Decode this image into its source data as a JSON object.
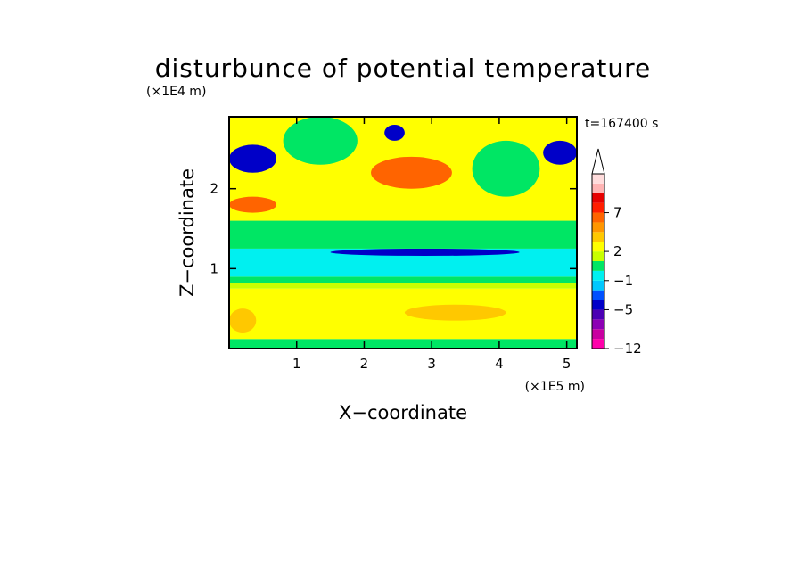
{
  "chart_data": {
    "type": "heatmap",
    "title": "disturbunce of potential temperature",
    "xlabel": "X−coordinate",
    "ylabel": "Z−coordinate",
    "x_unit": "(×1E5 m)",
    "y_unit": "(×1E4 m)",
    "time_label": "t=167400 s",
    "xlim": [
      0,
      5.15
    ],
    "ylim": [
      0,
      2.9
    ],
    "x_ticks": [
      1,
      2,
      3,
      4,
      5
    ],
    "y_ticks": [
      1,
      2
    ],
    "colorbar": {
      "tick_labels": [
        {
          "label": "7",
          "level": 7
        },
        {
          "label": "2",
          "level": 2
        },
        {
          "label": "−1",
          "level": -1
        },
        {
          "label": "−5",
          "level": -5
        },
        {
          "label": "−12",
          "level": -12
        }
      ],
      "bins": [
        {
          "lo": -12,
          "hi": -10,
          "color": "#ff00aa"
        },
        {
          "lo": -10,
          "hi": -8,
          "color": "#c800a0"
        },
        {
          "lo": -8,
          "hi": -6,
          "color": "#8c00b4"
        },
        {
          "lo": -6,
          "hi": -5,
          "color": "#4b00b4"
        },
        {
          "lo": -5,
          "hi": -3,
          "color": "#0000c8"
        },
        {
          "lo": -3,
          "hi": -2,
          "color": "#0050ff"
        },
        {
          "lo": -2,
          "hi": -1,
          "color": "#00c8ff"
        },
        {
          "lo": -1,
          "hi": 0,
          "color": "#00f0f0"
        },
        {
          "lo": 0,
          "hi": 1,
          "color": "#00e664"
        },
        {
          "lo": 1,
          "hi": 2,
          "color": "#c8ff00"
        },
        {
          "lo": 2,
          "hi": 3,
          "color": "#ffff00"
        },
        {
          "lo": 3,
          "hi": 4,
          "color": "#ffc800"
        },
        {
          "lo": 4,
          "hi": 5,
          "color": "#ff9600"
        },
        {
          "lo": 5,
          "hi": 7,
          "color": "#ff6400"
        },
        {
          "lo": 7,
          "hi": 9,
          "color": "#ff1e00"
        },
        {
          "lo": 9,
          "hi": 11,
          "color": "#e60000"
        },
        {
          "lo": 11,
          "hi": 13,
          "color": "#ffb4b4"
        },
        {
          "lo": 13,
          "hi": 15,
          "color": "#ffdcdc"
        }
      ],
      "extend": "max"
    },
    "regions": [
      {
        "value": 0.5,
        "x": [
          0,
          5.15
        ],
        "z": [
          0.0,
          0.12
        ]
      },
      {
        "value": 2.5,
        "x": [
          0,
          5.15
        ],
        "z": [
          0.12,
          0.75
        ]
      },
      {
        "value": 1.5,
        "x": [
          0,
          5.15
        ],
        "z": [
          0.75,
          0.82
        ]
      },
      {
        "value": 0.5,
        "x": [
          0,
          5.15
        ],
        "z": [
          0.82,
          0.9
        ]
      },
      {
        "value": -0.5,
        "x": [
          0,
          5.15
        ],
        "z": [
          0.9,
          1.25
        ]
      },
      {
        "value": -4,
        "x": [
          1.5,
          4.3
        ],
        "z": [
          1.16,
          1.25
        ]
      },
      {
        "value": 0.5,
        "x": [
          0,
          5.15
        ],
        "z": [
          1.25,
          1.6
        ]
      },
      {
        "value": 2.5,
        "x": [
          0,
          5.15
        ],
        "z": [
          1.6,
          2.9
        ]
      },
      {
        "value": 5,
        "x": [
          2.1,
          3.3
        ],
        "z": [
          2.0,
          2.4
        ]
      },
      {
        "value": 5,
        "x": [
          0,
          0.7
        ],
        "z": [
          1.7,
          1.9
        ]
      },
      {
        "value": -4,
        "x": [
          0,
          0.7
        ],
        "z": [
          2.2,
          2.55
        ]
      },
      {
        "value": -4,
        "x": [
          4.65,
          5.15
        ],
        "z": [
          2.3,
          2.6
        ]
      },
      {
        "value": -4,
        "x": [
          2.3,
          2.6
        ],
        "z": [
          2.6,
          2.8
        ]
      },
      {
        "value": 0.5,
        "x": [
          3.6,
          4.6
        ],
        "z": [
          1.9,
          2.6
        ]
      },
      {
        "value": 0.5,
        "x": [
          0.8,
          1.9
        ],
        "z": [
          2.3,
          2.9
        ]
      },
      {
        "value": 3.5,
        "x": [
          0,
          0.4
        ],
        "z": [
          0.2,
          0.5
        ]
      },
      {
        "value": 3.5,
        "x": [
          2.6,
          4.1
        ],
        "z": [
          0.35,
          0.55
        ]
      }
    ]
  }
}
